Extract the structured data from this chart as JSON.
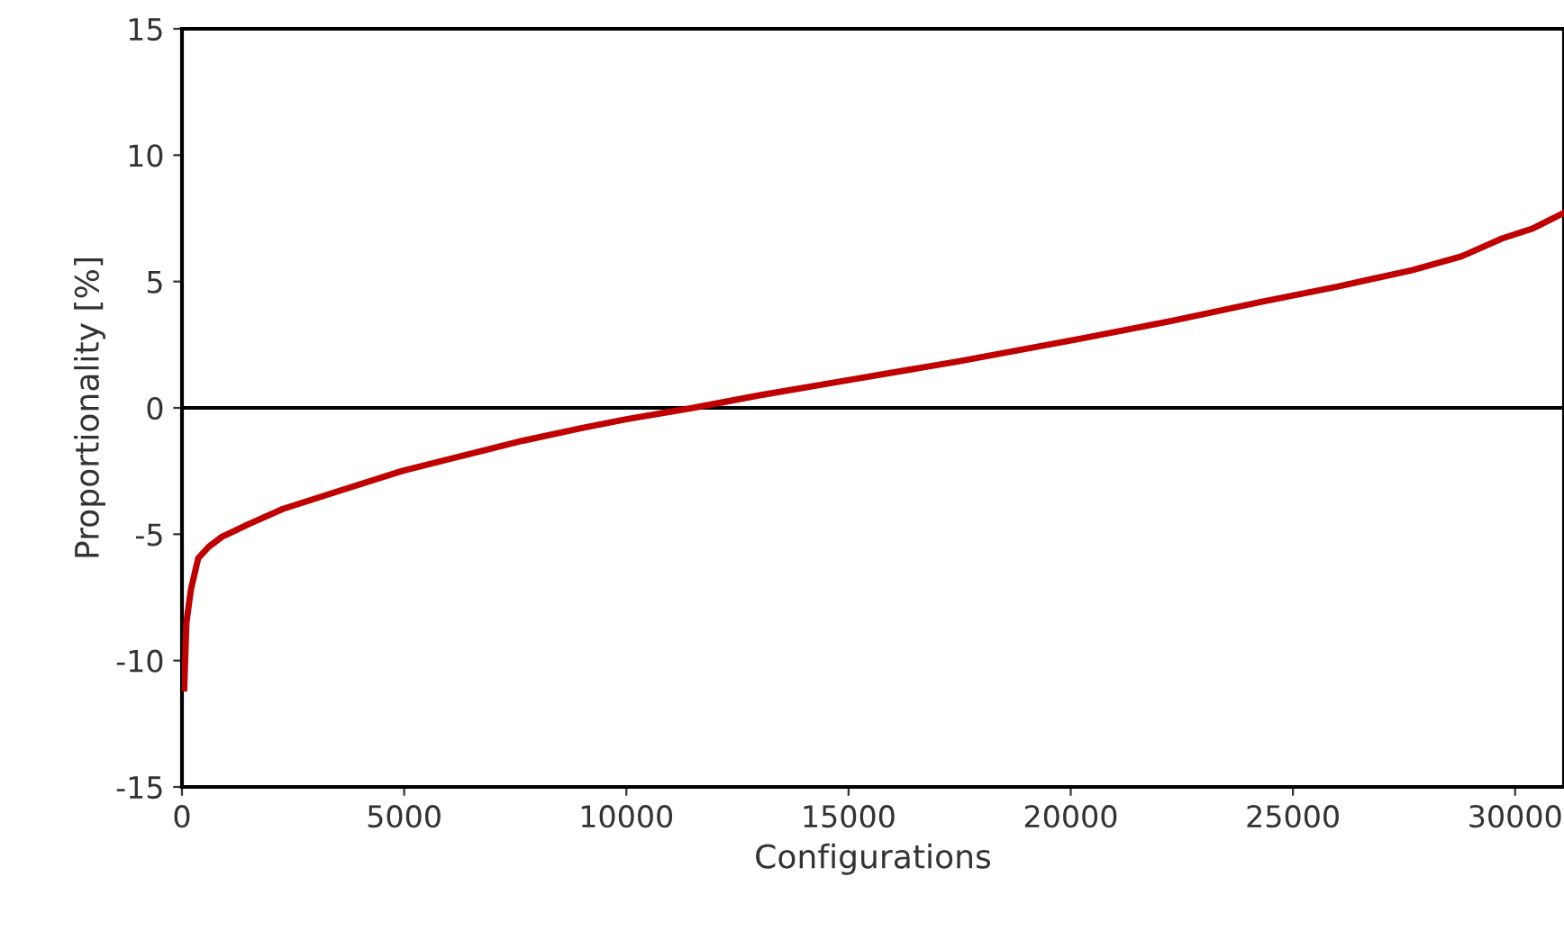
{
  "chart_data": {
    "type": "line",
    "xlabel": "Configurations",
    "ylabel": "Proportionality [%]",
    "xlim": [
      0,
      31100
    ],
    "ylim": [
      -15,
      15
    ],
    "xticks": [
      0,
      5000,
      10000,
      15000,
      20000,
      25000,
      30000
    ],
    "yticks": [
      -15,
      -10,
      -5,
      0,
      5,
      10,
      15
    ],
    "line_style": "solid",
    "ref_lines": [
      {
        "axis": "y",
        "value": 0,
        "color": "#000000"
      }
    ],
    "series": [
      {
        "color": "#c00000",
        "x": [
          50,
          100,
          200,
          365,
          600,
          900,
          1500,
          2270,
          3600,
          4950,
          6300,
          7670,
          9000,
          10000,
          11500,
          13000,
          15000,
          17500,
          20250,
          22300,
          24300,
          26000,
          27680,
          28800,
          29700,
          30400,
          31080
        ],
        "values": [
          -11.1,
          -8.5,
          -7.2,
          -5.95,
          -5.5,
          -5.1,
          -4.6,
          -4.0,
          -3.25,
          -2.5,
          -1.9,
          -1.3,
          -0.8,
          -0.45,
          0,
          0.5,
          1.1,
          1.85,
          2.75,
          3.45,
          4.2,
          4.8,
          5.45,
          6.0,
          6.7,
          7.1,
          7.7
        ]
      }
    ]
  }
}
